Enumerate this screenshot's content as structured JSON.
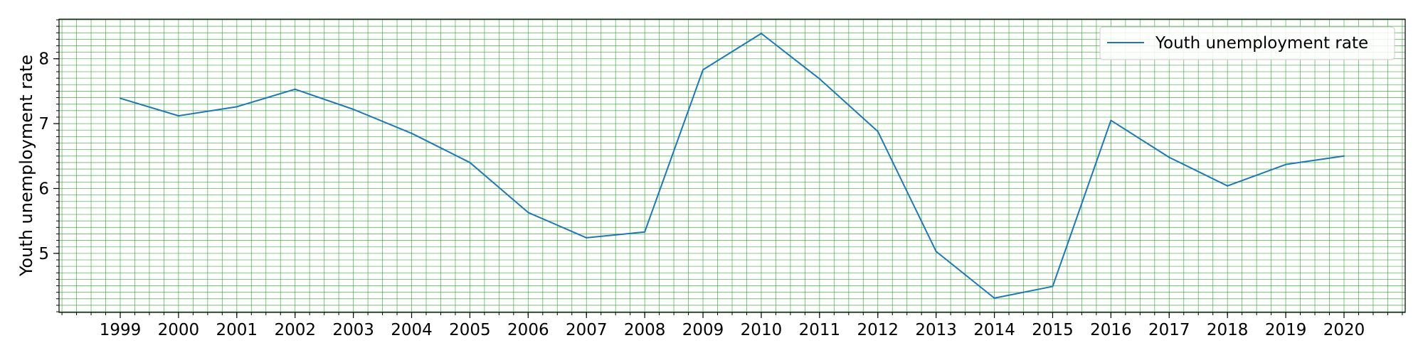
{
  "chart_data": {
    "type": "line",
    "title": "",
    "xlabel": "",
    "ylabel": "Youth unemployment rate",
    "x": [
      "1999",
      "2000",
      "2001",
      "2002",
      "2003",
      "2004",
      "2005",
      "2006",
      "2007",
      "2008",
      "2009",
      "2010",
      "2011",
      "2012",
      "2013",
      "2014",
      "2015",
      "2016",
      "2017",
      "2018",
      "2019",
      "2020"
    ],
    "series": [
      {
        "name": "Youth unemployment rate",
        "color": "#1f77b4",
        "values": [
          7.39,
          7.12,
          7.26,
          7.53,
          7.22,
          6.85,
          6.4,
          5.63,
          5.24,
          5.33,
          7.83,
          8.39,
          7.69,
          6.88,
          5.03,
          4.31,
          4.49,
          7.05,
          6.48,
          6.04,
          6.37,
          6.5
        ]
      }
    ],
    "xlim": [
      1997.95,
      2021.05
    ],
    "ylim": [
      4.09,
      8.61
    ],
    "yticks": [
      "5",
      "6",
      "7",
      "8"
    ],
    "grid": true,
    "grid_color": "#2ca02c",
    "legend_position": "top-right"
  }
}
